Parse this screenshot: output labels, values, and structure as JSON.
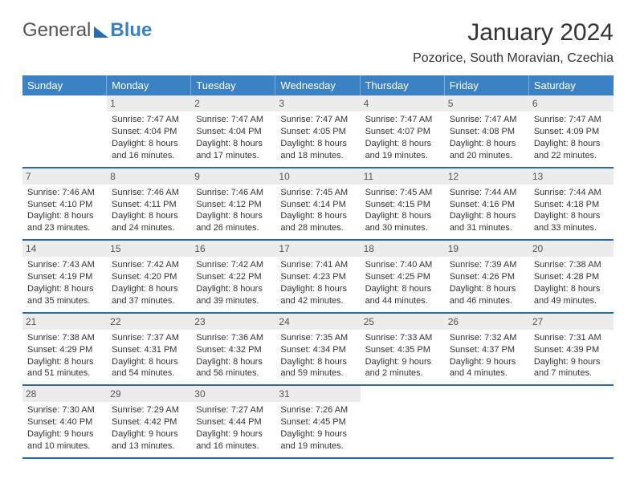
{
  "brand": {
    "part1": "General",
    "part2": "Blue"
  },
  "title": "January 2024",
  "location": "Pozorice, South Moravian, Czechia",
  "colors": {
    "header_bg": "#3b82c4",
    "header_text": "#ffffff",
    "daynum_bg": "#ececec",
    "rule": "#2b6ca0",
    "logo_blue": "#3b82c4",
    "text": "#333333"
  },
  "day_labels": [
    "Sunday",
    "Monday",
    "Tuesday",
    "Wednesday",
    "Thursday",
    "Friday",
    "Saturday"
  ],
  "weeks": [
    [
      {
        "n": "",
        "sunrise": "",
        "sunset": "",
        "daylight": ""
      },
      {
        "n": "1",
        "sunrise": "Sunrise: 7:47 AM",
        "sunset": "Sunset: 4:04 PM",
        "daylight": "Daylight: 8 hours and 16 minutes."
      },
      {
        "n": "2",
        "sunrise": "Sunrise: 7:47 AM",
        "sunset": "Sunset: 4:04 PM",
        "daylight": "Daylight: 8 hours and 17 minutes."
      },
      {
        "n": "3",
        "sunrise": "Sunrise: 7:47 AM",
        "sunset": "Sunset: 4:05 PM",
        "daylight": "Daylight: 8 hours and 18 minutes."
      },
      {
        "n": "4",
        "sunrise": "Sunrise: 7:47 AM",
        "sunset": "Sunset: 4:07 PM",
        "daylight": "Daylight: 8 hours and 19 minutes."
      },
      {
        "n": "5",
        "sunrise": "Sunrise: 7:47 AM",
        "sunset": "Sunset: 4:08 PM",
        "daylight": "Daylight: 8 hours and 20 minutes."
      },
      {
        "n": "6",
        "sunrise": "Sunrise: 7:47 AM",
        "sunset": "Sunset: 4:09 PM",
        "daylight": "Daylight: 8 hours and 22 minutes."
      }
    ],
    [
      {
        "n": "7",
        "sunrise": "Sunrise: 7:46 AM",
        "sunset": "Sunset: 4:10 PM",
        "daylight": "Daylight: 8 hours and 23 minutes."
      },
      {
        "n": "8",
        "sunrise": "Sunrise: 7:46 AM",
        "sunset": "Sunset: 4:11 PM",
        "daylight": "Daylight: 8 hours and 24 minutes."
      },
      {
        "n": "9",
        "sunrise": "Sunrise: 7:46 AM",
        "sunset": "Sunset: 4:12 PM",
        "daylight": "Daylight: 8 hours and 26 minutes."
      },
      {
        "n": "10",
        "sunrise": "Sunrise: 7:45 AM",
        "sunset": "Sunset: 4:14 PM",
        "daylight": "Daylight: 8 hours and 28 minutes."
      },
      {
        "n": "11",
        "sunrise": "Sunrise: 7:45 AM",
        "sunset": "Sunset: 4:15 PM",
        "daylight": "Daylight: 8 hours and 30 minutes."
      },
      {
        "n": "12",
        "sunrise": "Sunrise: 7:44 AM",
        "sunset": "Sunset: 4:16 PM",
        "daylight": "Daylight: 8 hours and 31 minutes."
      },
      {
        "n": "13",
        "sunrise": "Sunrise: 7:44 AM",
        "sunset": "Sunset: 4:18 PM",
        "daylight": "Daylight: 8 hours and 33 minutes."
      }
    ],
    [
      {
        "n": "14",
        "sunrise": "Sunrise: 7:43 AM",
        "sunset": "Sunset: 4:19 PM",
        "daylight": "Daylight: 8 hours and 35 minutes."
      },
      {
        "n": "15",
        "sunrise": "Sunrise: 7:42 AM",
        "sunset": "Sunset: 4:20 PM",
        "daylight": "Daylight: 8 hours and 37 minutes."
      },
      {
        "n": "16",
        "sunrise": "Sunrise: 7:42 AM",
        "sunset": "Sunset: 4:22 PM",
        "daylight": "Daylight: 8 hours and 39 minutes."
      },
      {
        "n": "17",
        "sunrise": "Sunrise: 7:41 AM",
        "sunset": "Sunset: 4:23 PM",
        "daylight": "Daylight: 8 hours and 42 minutes."
      },
      {
        "n": "18",
        "sunrise": "Sunrise: 7:40 AM",
        "sunset": "Sunset: 4:25 PM",
        "daylight": "Daylight: 8 hours and 44 minutes."
      },
      {
        "n": "19",
        "sunrise": "Sunrise: 7:39 AM",
        "sunset": "Sunset: 4:26 PM",
        "daylight": "Daylight: 8 hours and 46 minutes."
      },
      {
        "n": "20",
        "sunrise": "Sunrise: 7:38 AM",
        "sunset": "Sunset: 4:28 PM",
        "daylight": "Daylight: 8 hours and 49 minutes."
      }
    ],
    [
      {
        "n": "21",
        "sunrise": "Sunrise: 7:38 AM",
        "sunset": "Sunset: 4:29 PM",
        "daylight": "Daylight: 8 hours and 51 minutes."
      },
      {
        "n": "22",
        "sunrise": "Sunrise: 7:37 AM",
        "sunset": "Sunset: 4:31 PM",
        "daylight": "Daylight: 8 hours and 54 minutes."
      },
      {
        "n": "23",
        "sunrise": "Sunrise: 7:36 AM",
        "sunset": "Sunset: 4:32 PM",
        "daylight": "Daylight: 8 hours and 56 minutes."
      },
      {
        "n": "24",
        "sunrise": "Sunrise: 7:35 AM",
        "sunset": "Sunset: 4:34 PM",
        "daylight": "Daylight: 8 hours and 59 minutes."
      },
      {
        "n": "25",
        "sunrise": "Sunrise: 7:33 AM",
        "sunset": "Sunset: 4:35 PM",
        "daylight": "Daylight: 9 hours and 2 minutes."
      },
      {
        "n": "26",
        "sunrise": "Sunrise: 7:32 AM",
        "sunset": "Sunset: 4:37 PM",
        "daylight": "Daylight: 9 hours and 4 minutes."
      },
      {
        "n": "27",
        "sunrise": "Sunrise: 7:31 AM",
        "sunset": "Sunset: 4:39 PM",
        "daylight": "Daylight: 9 hours and 7 minutes."
      }
    ],
    [
      {
        "n": "28",
        "sunrise": "Sunrise: 7:30 AM",
        "sunset": "Sunset: 4:40 PM",
        "daylight": "Daylight: 9 hours and 10 minutes."
      },
      {
        "n": "29",
        "sunrise": "Sunrise: 7:29 AM",
        "sunset": "Sunset: 4:42 PM",
        "daylight": "Daylight: 9 hours and 13 minutes."
      },
      {
        "n": "30",
        "sunrise": "Sunrise: 7:27 AM",
        "sunset": "Sunset: 4:44 PM",
        "daylight": "Daylight: 9 hours and 16 minutes."
      },
      {
        "n": "31",
        "sunrise": "Sunrise: 7:26 AM",
        "sunset": "Sunset: 4:45 PM",
        "daylight": "Daylight: 9 hours and 19 minutes."
      },
      {
        "n": "",
        "sunrise": "",
        "sunset": "",
        "daylight": ""
      },
      {
        "n": "",
        "sunrise": "",
        "sunset": "",
        "daylight": ""
      },
      {
        "n": "",
        "sunrise": "",
        "sunset": "",
        "daylight": ""
      }
    ]
  ]
}
